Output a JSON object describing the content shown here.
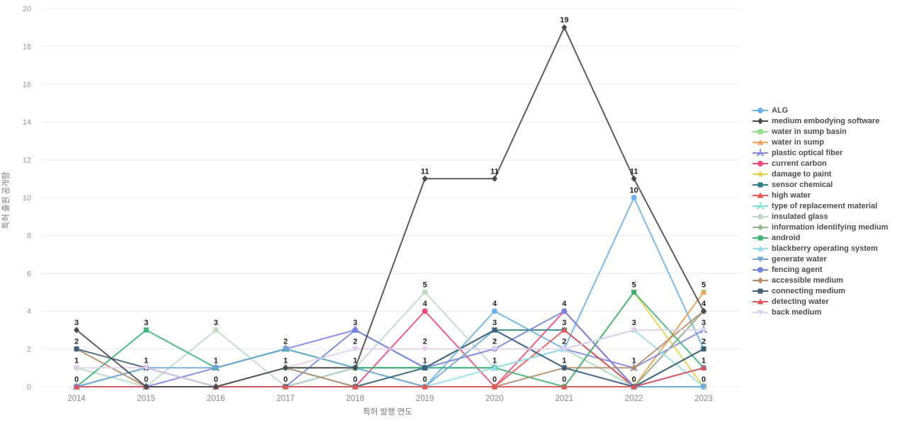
{
  "chart_data": {
    "type": "line",
    "title": "",
    "xlabel": "특허 발행 연도",
    "ylabel": "특허 출원 공개량",
    "categories": [
      2014,
      2015,
      2016,
      2017,
      2018,
      2019,
      2020,
      2021,
      2022,
      2023
    ],
    "ylim": [
      0,
      20
    ],
    "ytick_step": 2,
    "grid": true,
    "legend_position": "right",
    "point_label_color": "#222222",
    "axis_tick_color": "#999999",
    "series": [
      {
        "name": "ALG",
        "color": "#6db1e8",
        "marker": "circle",
        "values": [
          0,
          1,
          0,
          0,
          0,
          0,
          4,
          2,
          10,
          2
        ]
      },
      {
        "name": "medium embodying software",
        "color": "#4a4a4a",
        "marker": "diamond",
        "values": [
          3,
          0,
          0,
          1,
          1,
          11,
          11,
          19,
          11,
          4
        ]
      },
      {
        "name": "water in sump basin",
        "color": "#8ce087",
        "marker": "square",
        "values": [
          0,
          0,
          0,
          0,
          0,
          0,
          0,
          0,
          0,
          5
        ]
      },
      {
        "name": "water in sump",
        "color": "#f2a35c",
        "marker": "triangle",
        "values": [
          0,
          0,
          0,
          0,
          0,
          0,
          0,
          0,
          0,
          5
        ]
      },
      {
        "name": "plastic optical fiber",
        "color": "#8087e8",
        "marker": "tri",
        "values": [
          0,
          0,
          1,
          2,
          3,
          1,
          1,
          2,
          1,
          3
        ]
      },
      {
        "name": "current carbon",
        "color": "#eb4d78",
        "marker": "circle",
        "values": [
          0,
          0,
          0,
          0,
          0,
          4,
          0,
          4,
          0,
          0
        ]
      },
      {
        "name": "damage to paint",
        "color": "#e6d14f",
        "marker": "diamond",
        "values": [
          0,
          0,
          0,
          0,
          0,
          0,
          0,
          0,
          5,
          0
        ]
      },
      {
        "name": "sensor chemical",
        "color": "#2d8186",
        "marker": "square",
        "values": [
          0,
          0,
          0,
          0,
          1,
          1,
          3,
          3,
          0,
          2
        ]
      },
      {
        "name": "high water",
        "color": "#e85555",
        "marker": "triangle",
        "values": [
          0,
          0,
          0,
          0,
          0,
          0,
          0,
          3,
          0,
          4
        ]
      },
      {
        "name": "type of replacement material",
        "color": "#7de3cf",
        "marker": "tri",
        "values": [
          0,
          0,
          0,
          1,
          0,
          1,
          1,
          2,
          0,
          0
        ]
      },
      {
        "name": "insulated glass",
        "color": "#bedac6",
        "marker": "circle",
        "values": [
          1,
          0,
          3,
          0,
          1,
          5,
          1,
          2,
          0,
          4
        ]
      },
      {
        "name": "information identifying medium",
        "color": "#96b590",
        "marker": "diamond",
        "values": [
          0,
          0,
          0,
          1,
          1,
          0,
          0,
          0,
          0,
          4
        ]
      },
      {
        "name": "android",
        "color": "#3cb478",
        "marker": "square",
        "values": [
          0,
          3,
          1,
          2,
          1,
          1,
          1,
          0,
          5,
          1
        ]
      },
      {
        "name": "blackberry operating system",
        "color": "#96dde9",
        "marker": "triangle",
        "values": [
          0,
          0,
          0,
          0,
          0,
          0,
          1,
          2,
          3,
          0
        ]
      },
      {
        "name": "generate water",
        "color": "#6ea6d9",
        "marker": "triangle-down",
        "values": [
          0,
          1,
          1,
          2,
          1,
          0,
          3,
          1,
          0,
          0
        ]
      },
      {
        "name": "fencing agent",
        "color": "#7484de",
        "marker": "circle",
        "values": [
          0,
          0,
          0,
          0,
          3,
          1,
          2,
          4,
          0,
          1
        ]
      },
      {
        "name": "accessible medium",
        "color": "#b38b69",
        "marker": "diamond",
        "values": [
          2,
          0,
          0,
          1,
          0,
          0,
          0,
          1,
          1,
          4
        ]
      },
      {
        "name": "connecting medium",
        "color": "#40607a",
        "marker": "square",
        "values": [
          2,
          1,
          0,
          0,
          0,
          1,
          3,
          1,
          0,
          2
        ]
      },
      {
        "name": "detecting water",
        "color": "#de5858",
        "marker": "triangle",
        "values": [
          0,
          0,
          0,
          0,
          0,
          0,
          0,
          0,
          0,
          1
        ]
      },
      {
        "name": "back medium",
        "color": "#e2cfec",
        "marker": "triangle-down",
        "values": [
          1,
          1,
          0,
          1,
          2,
          2,
          2,
          2,
          3,
          3
        ]
      }
    ]
  }
}
